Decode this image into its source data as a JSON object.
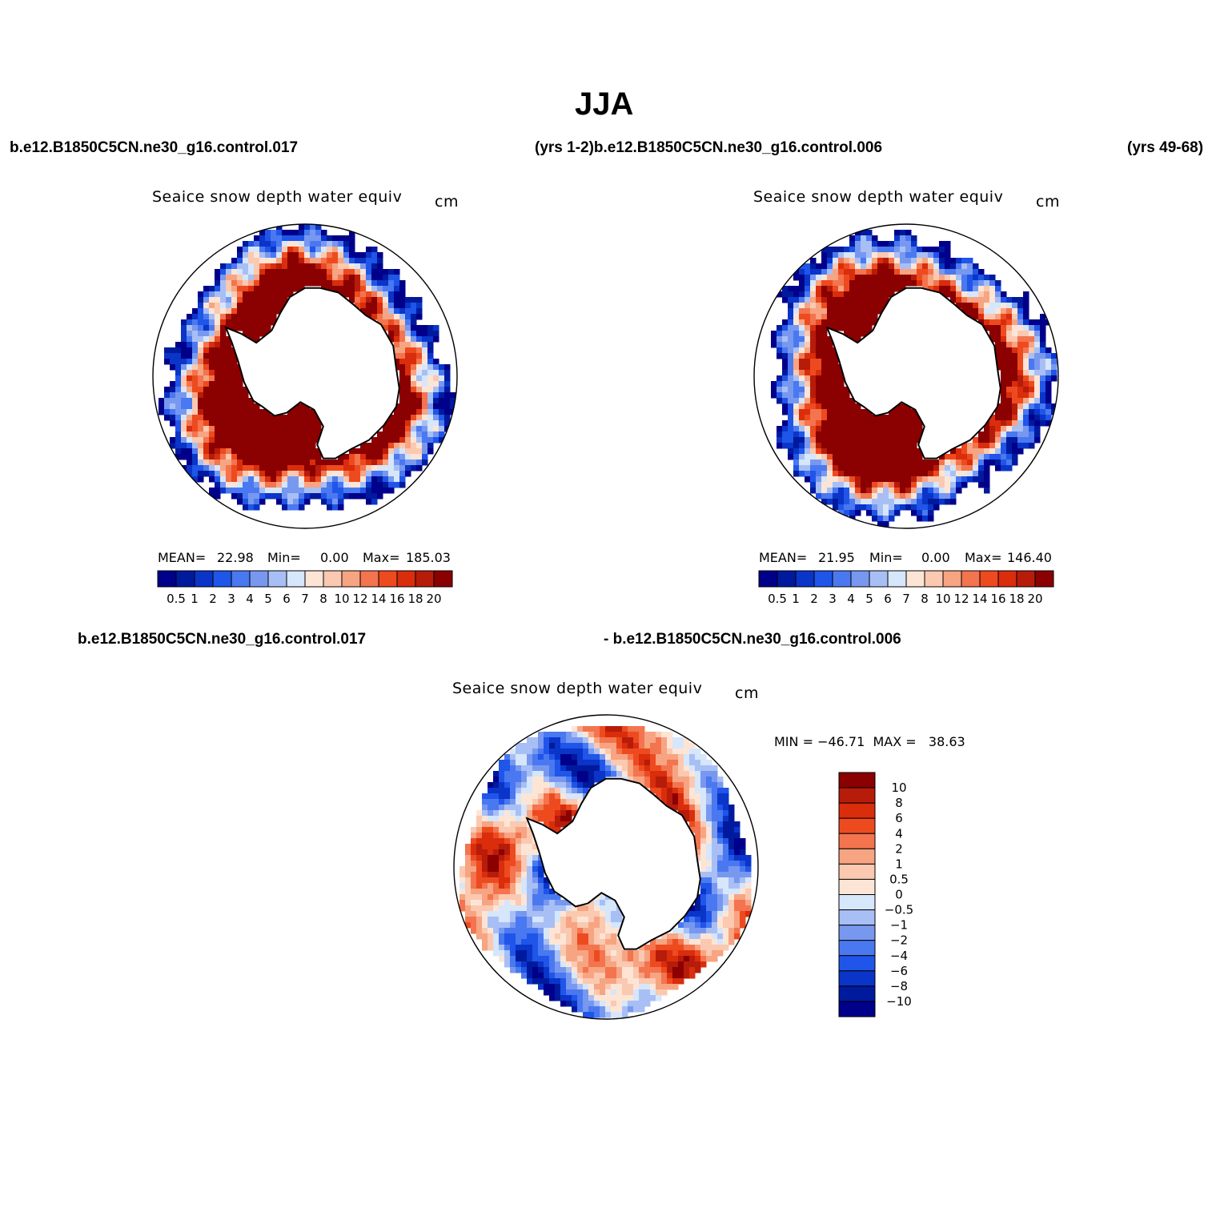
{
  "figure": {
    "title": "JJA",
    "case_left": "b.e12.B1850C5CN.ne30_g16.control.017",
    "case_mid": "(yrs 1-2)b.e12.B1850C5CN.ne30_g16.control.006",
    "case_right": "(yrs 49-68)",
    "diff_case_left": "b.e12.B1850C5CN.ne30_g16.control.017",
    "diff_case_right": "- b.e12.B1850C5CN.ne30_g16.control.006"
  },
  "colors": {
    "diverging": [
      "#00008b",
      "#001a9e",
      "#0a35c8",
      "#1f55e8",
      "#4a78f0",
      "#7898f0",
      "#a8bff5",
      "#d6e6fb",
      "#fde5d6",
      "#fbc8b0",
      "#f7a482",
      "#f3744e",
      "#ee4a1f",
      "#d92d0c",
      "#b71c0a",
      "#8b0000"
    ],
    "diff": [
      "#00008b",
      "#001a9e",
      "#0a35c8",
      "#1f55e8",
      "#4a78f0",
      "#7898f0",
      "#a8bff5",
      "#d6e6fb",
      "#fde5d6",
      "#fbc8b0",
      "#f7a482",
      "#f3744e",
      "#ee4a1f",
      "#d92d0c",
      "#b71c0a",
      "#8b0000"
    ]
  },
  "chart_data": [
    {
      "type": "heatmap",
      "projection": "south-polar-stereographic",
      "title": "Seaice snow depth water equiv",
      "units": "cm",
      "stats": {
        "mean_label": "MEAN=",
        "mean": "22.98",
        "min_label": "Min=",
        "min": "0.00",
        "max_label": "Max=",
        "max": "185.03"
      },
      "colorbar_levels": [
        "0.5",
        "1",
        "2",
        "3",
        "4",
        "5",
        "6",
        "7",
        "8",
        "10",
        "12",
        "14",
        "16",
        "18",
        "20"
      ]
    },
    {
      "type": "heatmap",
      "projection": "south-polar-stereographic",
      "title": "Seaice snow depth water equiv",
      "units": "cm",
      "stats": {
        "mean_label": "MEAN=",
        "mean": "21.95",
        "min_label": "Min=",
        "min": "0.00",
        "max_label": "Max=",
        "max": "146.40"
      },
      "colorbar_levels": [
        "0.5",
        "1",
        "2",
        "3",
        "4",
        "5",
        "6",
        "7",
        "8",
        "10",
        "12",
        "14",
        "16",
        "18",
        "20"
      ]
    },
    {
      "type": "heatmap",
      "projection": "south-polar-stereographic",
      "title": "Seaice snow depth water equiv",
      "units": "cm",
      "stats": {
        "text": "MIN = −46.71  MAX =   38.63"
      },
      "colorbar_levels": [
        "10",
        "8",
        "6",
        "4",
        "2",
        "1",
        "0.5",
        "0",
        "−0.5",
        "−1",
        "−2",
        "−4",
        "−6",
        "−8",
        "−10"
      ]
    }
  ]
}
